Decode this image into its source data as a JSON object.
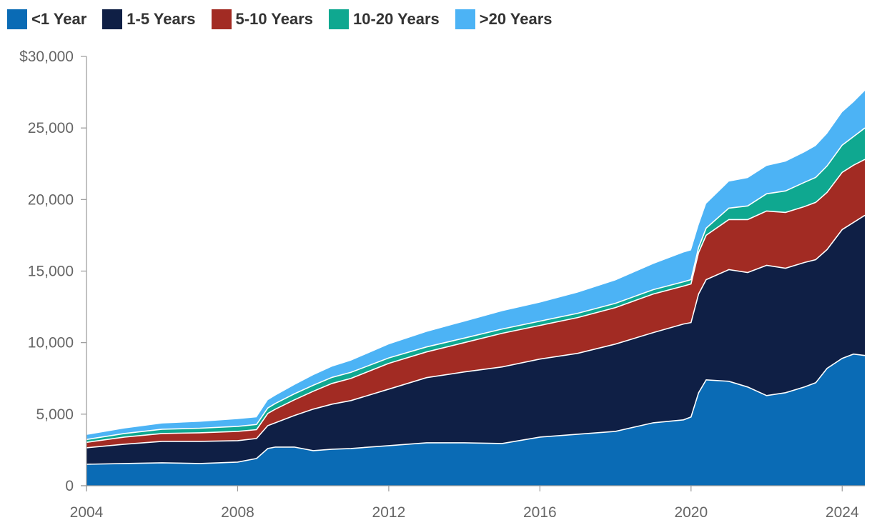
{
  "chart_data": {
    "type": "area",
    "stacked": true,
    "legend": "top-left",
    "grid": false,
    "title": "",
    "xlabel": "",
    "ylabel": "",
    "xlim": [
      2004,
      2024.6
    ],
    "ylim": [
      0,
      30000
    ],
    "x_ticks": [
      2004,
      2008,
      2012,
      2016,
      2020,
      2024
    ],
    "x_tick_labels": [
      "2004",
      "2008",
      "2012",
      "2016",
      "2020",
      "2024"
    ],
    "y_ticks": [
      0,
      5000,
      10000,
      15000,
      20000,
      25000,
      30000
    ],
    "y_tick_labels": [
      "0",
      "5,000",
      "10,000",
      "15,000",
      "20,000",
      "25,000",
      "$30,000"
    ],
    "x": [
      2004.0,
      2005.0,
      2006.0,
      2007.0,
      2008.0,
      2008.5,
      2008.8,
      2009.0,
      2009.5,
      2010.0,
      2010.5,
      2011.0,
      2012.0,
      2013.0,
      2014.0,
      2015.0,
      2016.0,
      2017.0,
      2018.0,
      2019.0,
      2019.8,
      2020.0,
      2020.2,
      2020.4,
      2021.0,
      2021.5,
      2022.0,
      2022.5,
      2023.0,
      2023.3,
      2023.6,
      2024.0,
      2024.3,
      2024.6
    ],
    "series": [
      {
        "name": "<1 Year",
        "color": "#0a6bb5",
        "values": [
          1500,
          1550,
          1600,
          1550,
          1650,
          1900,
          2600,
          2700,
          2700,
          2450,
          2550,
          2600,
          2800,
          3000,
          3000,
          2950,
          3400,
          3600,
          3800,
          4400,
          4600,
          4800,
          6500,
          7400,
          7300,
          6900,
          6300,
          6500,
          6900,
          7200,
          8200,
          8900,
          9200,
          9100
        ]
      },
      {
        "name": "1-5 Years",
        "color": "#0f1f45",
        "values": [
          1150,
          1350,
          1500,
          1550,
          1500,
          1400,
          1600,
          1700,
          2200,
          2900,
          3150,
          3350,
          3950,
          4550,
          4950,
          5350,
          5450,
          5650,
          6100,
          6300,
          6700,
          6600,
          6900,
          7000,
          7800,
          8000,
          9100,
          8700,
          8700,
          8600,
          8300,
          9000,
          9200,
          9800
        ]
      },
      {
        "name": "5-10 Years",
        "color": "#a22b23",
        "values": [
          380,
          500,
          550,
          600,
          650,
          620,
          850,
          950,
          1100,
          1250,
          1450,
          1550,
          1800,
          1800,
          2050,
          2350,
          2350,
          2500,
          2550,
          2700,
          2650,
          2700,
          2900,
          3100,
          3500,
          3700,
          3800,
          3900,
          3900,
          4000,
          4000,
          4000,
          4000,
          3900
        ]
      },
      {
        "name": "10-20 Years",
        "color": "#0fa890",
        "values": [
          200,
          250,
          300,
          320,
          350,
          360,
          380,
          400,
          420,
          420,
          420,
          420,
          380,
          350,
          320,
          300,
          300,
          300,
          300,
          300,
          300,
          300,
          350,
          500,
          800,
          950,
          1200,
          1500,
          1700,
          1750,
          1850,
          1900,
          2000,
          2200
        ]
      },
      {
        "name": ">20 Years",
        "color": "#4cb3f5",
        "values": [
          320,
          350,
          400,
          450,
          500,
          500,
          550,
          550,
          620,
          700,
          750,
          820,
          950,
          1050,
          1150,
          1250,
          1300,
          1450,
          1600,
          1800,
          2050,
          2050,
          1550,
          1700,
          1850,
          1950,
          1950,
          2050,
          2100,
          2200,
          2250,
          2300,
          2400,
          2600
        ]
      }
    ]
  }
}
